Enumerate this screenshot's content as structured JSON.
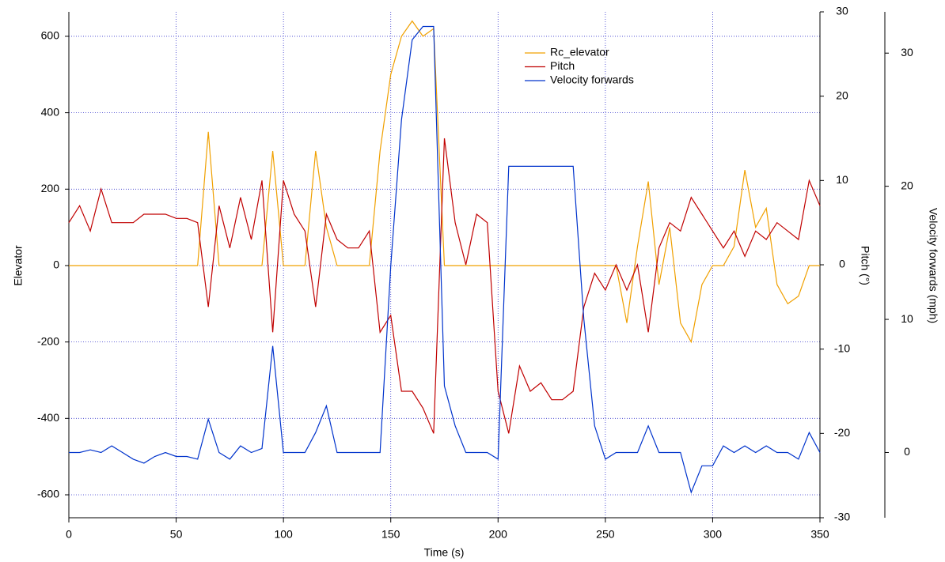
{
  "chart_data": {
    "type": "line",
    "xlabel": "Time (s)",
    "ylabel": "Elevator",
    "y2label": "Pitch (°)",
    "y3label": "Velocity forwards (mph)",
    "x": [
      0,
      5,
      10,
      15,
      20,
      25,
      30,
      35,
      40,
      45,
      50,
      55,
      60,
      65,
      70,
      75,
      80,
      85,
      90,
      95,
      100,
      105,
      110,
      115,
      120,
      125,
      130,
      135,
      140,
      145,
      150,
      155,
      160,
      165,
      170,
      175,
      180,
      185,
      190,
      195,
      200,
      205,
      210,
      215,
      220,
      225,
      230,
      235,
      240,
      245,
      250,
      255,
      260,
      265,
      270,
      275,
      280,
      285,
      290,
      295,
      300,
      305,
      310,
      315,
      320,
      325,
      330,
      335,
      340,
      345,
      350
    ],
    "series": [
      {
        "name": "Rc_elevator",
        "color": "#f0a000",
        "values": [
          0,
          0,
          0,
          0,
          0,
          0,
          0,
          0,
          0,
          0,
          0,
          0,
          0,
          350,
          0,
          0,
          0,
          0,
          0,
          300,
          0,
          0,
          0,
          300,
          100,
          0,
          0,
          0,
          0,
          300,
          500,
          600,
          640,
          600,
          620,
          0,
          0,
          0,
          0,
          0,
          0,
          0,
          0,
          0,
          0,
          0,
          0,
          0,
          0,
          0,
          0,
          0,
          -150,
          50,
          220,
          -50,
          100,
          -150,
          -200,
          -50,
          0,
          0,
          50,
          250,
          100,
          150,
          -50,
          -100,
          -80,
          0,
          0
        ]
      },
      {
        "name": "Pitch",
        "color": "#c00000",
        "axis": "y2",
        "values": [
          5,
          7,
          4,
          9,
          5,
          5,
          5,
          6,
          6,
          6,
          5.5,
          5.5,
          5,
          -5,
          7,
          2,
          8,
          3,
          10,
          -8,
          10,
          6,
          4,
          -5,
          6,
          3,
          2,
          2,
          4,
          -8,
          -6,
          -15,
          -15,
          -17,
          -20,
          15,
          5,
          0,
          6,
          5,
          -15,
          -20,
          -12,
          -15,
          -14,
          -16,
          -16,
          -15,
          -5,
          -1,
          -3,
          0,
          -3,
          0,
          -8,
          2,
          5,
          4,
          8,
          6,
          4,
          2,
          4,
          1,
          4,
          3,
          5,
          4,
          3,
          10,
          7
        ]
      },
      {
        "name": "Velocity forwards",
        "color": "#0033cc",
        "axis": "y3",
        "values": [
          0,
          0,
          0.2,
          0,
          0.5,
          0,
          -0.5,
          -0.8,
          -0.3,
          0,
          -0.3,
          -0.3,
          -0.5,
          2.5,
          0,
          -0.5,
          0.5,
          0,
          0.3,
          8,
          0,
          0,
          0,
          1.5,
          3.5,
          0,
          0,
          0,
          0,
          0,
          14,
          25,
          31,
          32,
          32,
          5,
          2,
          0,
          0,
          0,
          -0.5,
          21.5,
          21.5,
          21.5,
          21.5,
          21.5,
          21.5,
          21.5,
          10,
          2,
          -0.5,
          0,
          0,
          0,
          2,
          0,
          0,
          0,
          -3,
          -1,
          -1,
          0.5,
          0,
          0.5,
          0,
          0.5,
          0,
          0,
          -0.5,
          1.5,
          0
        ]
      }
    ],
    "xlim": [
      0,
      350
    ],
    "xticks": [
      0,
      50,
      100,
      150,
      200,
      250,
      300,
      350
    ],
    "ylim": [
      -660,
      664
    ],
    "yticks": [
      -600,
      -400,
      -200,
      0,
      200,
      400,
      600
    ],
    "y2lim": [
      -30,
      30
    ],
    "y2ticks": [
      -30,
      -20,
      -10,
      0,
      10,
      20,
      30
    ],
    "y3lim": [
      -4.9,
      33.1
    ],
    "y3ticks": [
      0,
      10,
      20,
      30
    ],
    "grid": true,
    "legend": "upper center"
  }
}
